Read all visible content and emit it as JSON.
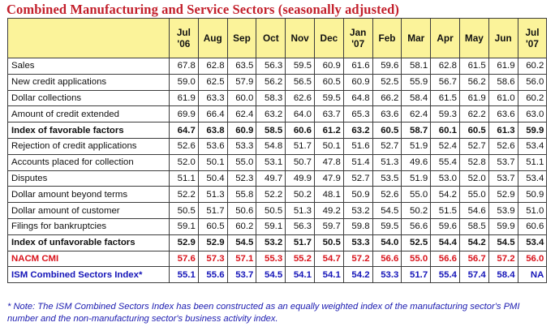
{
  "title": "Combined Manufacturing and Service Sectors (seasonally adjusted)",
  "columns": [
    {
      "top": "Jul",
      "bottom": "'06"
    },
    {
      "top": "Aug",
      "bottom": ""
    },
    {
      "top": "Sep",
      "bottom": ""
    },
    {
      "top": "Oct",
      "bottom": ""
    },
    {
      "top": "Nov",
      "bottom": ""
    },
    {
      "top": "Dec",
      "bottom": ""
    },
    {
      "top": "Jan",
      "bottom": "'07"
    },
    {
      "top": "Feb",
      "bottom": ""
    },
    {
      "top": "Mar",
      "bottom": ""
    },
    {
      "top": "Apr",
      "bottom": ""
    },
    {
      "top": "May",
      "bottom": ""
    },
    {
      "top": "Jun",
      "bottom": ""
    },
    {
      "top": "Jul",
      "bottom": "'07"
    }
  ],
  "rows": [
    {
      "label": "Sales",
      "style": "normal",
      "values": [
        "67.8",
        "62.8",
        "63.5",
        "56.3",
        "59.5",
        "60.9",
        "61.6",
        "59.6",
        "58.1",
        "62.8",
        "61.5",
        "61.9",
        "60.2"
      ]
    },
    {
      "label": "New credit applications",
      "style": "normal",
      "values": [
        "59.0",
        "62.5",
        "57.9",
        "56.2",
        "56.5",
        "60.5",
        "60.9",
        "52.5",
        "55.9",
        "56.7",
        "56.2",
        "58.6",
        "56.0"
      ]
    },
    {
      "label": "Dollar collections",
      "style": "normal",
      "values": [
        "61.9",
        "63.3",
        "60.0",
        "58.3",
        "62.6",
        "59.5",
        "64.8",
        "66.2",
        "58.4",
        "61.5",
        "61.9",
        "61.0",
        "60.2"
      ]
    },
    {
      "label": "Amount of credit extended",
      "style": "normal",
      "values": [
        "69.9",
        "66.4",
        "62.4",
        "63.2",
        "64.0",
        "63.7",
        "65.3",
        "63.6",
        "62.4",
        "59.3",
        "62.2",
        "63.6",
        "63.0"
      ]
    },
    {
      "label": "Index of favorable factors",
      "style": "bold",
      "values": [
        "64.7",
        "63.8",
        "60.9",
        "58.5",
        "60.6",
        "61.2",
        "63.2",
        "60.5",
        "58.7",
        "60.1",
        "60.5",
        "61.3",
        "59.9"
      ]
    },
    {
      "label": "Rejection of credit applications",
      "style": "normal",
      "values": [
        "52.6",
        "53.6",
        "53.3",
        "54.8",
        "51.7",
        "50.1",
        "51.6",
        "52.7",
        "51.9",
        "52.4",
        "52.7",
        "52.6",
        "53.4"
      ]
    },
    {
      "label": "Accounts placed for collection",
      "style": "normal",
      "values": [
        "52.0",
        "50.1",
        "55.0",
        "53.1",
        "50.7",
        "47.8",
        "51.4",
        "51.3",
        "49.6",
        "55.4",
        "52.8",
        "53.7",
        "51.1"
      ]
    },
    {
      "label": "Disputes",
      "style": "normal",
      "values": [
        "51.1",
        "50.4",
        "52.3",
        "49.7",
        "49.9",
        "47.9",
        "52.7",
        "53.5",
        "51.9",
        "53.0",
        "52.0",
        "53.7",
        "53.4"
      ]
    },
    {
      "label": "Dollar amount beyond terms",
      "style": "normal",
      "values": [
        "52.2",
        "51.3",
        "55.8",
        "52.2",
        "50.2",
        "48.1",
        "50.9",
        "52.6",
        "55.0",
        "54.2",
        "55.0",
        "52.9",
        "50.9"
      ]
    },
    {
      "label": "Dollar amount of customer",
      "style": "normal",
      "values": [
        "50.5",
        "51.7",
        "50.6",
        "50.5",
        "51.3",
        "49.2",
        "53.2",
        "54.5",
        "50.2",
        "51.5",
        "54.6",
        "53.9",
        "51.0"
      ]
    },
    {
      "label": "Filings for bankruptcies",
      "style": "normal",
      "values": [
        "59.1",
        "60.5",
        "60.2",
        "59.1",
        "56.3",
        "59.7",
        "59.8",
        "59.5",
        "56.6",
        "59.6",
        "58.5",
        "59.9",
        "60.6"
      ]
    },
    {
      "label": "Index of unfavorable factors",
      "style": "bold",
      "values": [
        "52.9",
        "52.9",
        "54.5",
        "53.2",
        "51.7",
        "50.5",
        "53.3",
        "54.0",
        "52.5",
        "54.4",
        "54.2",
        "54.5",
        "53.4"
      ]
    },
    {
      "label": "NACM CMI",
      "style": "nacm",
      "values": [
        "57.6",
        "57.3",
        "57.1",
        "55.3",
        "55.2",
        "54.7",
        "57.2",
        "56.6",
        "55.0",
        "56.6",
        "56.7",
        "57.2",
        "56.0"
      ]
    },
    {
      "label": "ISM Combined Sectors Index*",
      "style": "ism",
      "values": [
        "55.1",
        "55.6",
        "53.7",
        "54.5",
        "54.1",
        "54.1",
        "54.2",
        "53.3",
        "51.7",
        "55.4",
        "57.4",
        "58.4",
        "NA"
      ]
    }
  ],
  "note": "* Note: The ISM Combined Sectors Index has been constructed as an equally weighted index of the manufacturing sector's PMI number and the non-manufacturing sector's business activity index.",
  "colors": {
    "title": "#c3202c",
    "header_bg": "#fbf39a",
    "nacm_row": "#d9141c",
    "ism_row": "#1515b8",
    "note": "#1b1bb0"
  }
}
